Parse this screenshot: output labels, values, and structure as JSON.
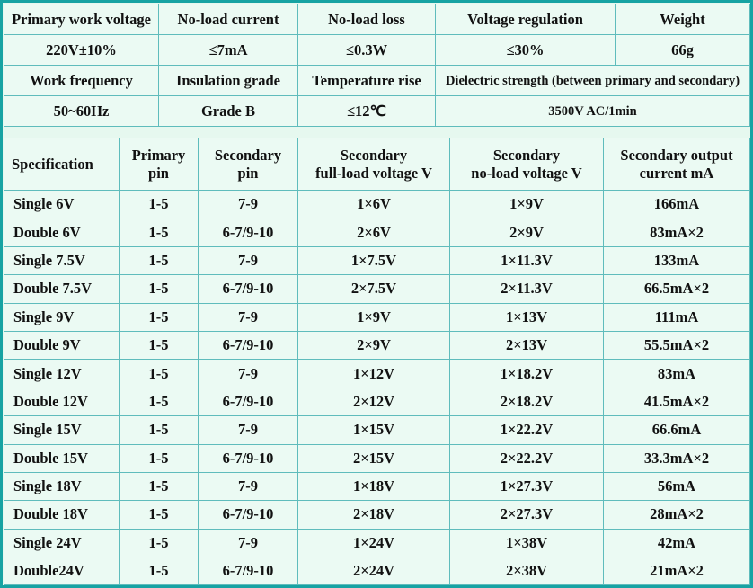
{
  "top": {
    "rows": [
      [
        "Primary work voltage",
        "No-load current",
        "No-load loss",
        "Voltage regulation",
        "Weight"
      ],
      [
        "220V±10%",
        "≤7mA",
        "≤0.3W",
        "≤30%",
        "66g"
      ],
      [
        "Work frequency",
        "Insulation grade",
        "Temperature rise",
        "Dielectric strength (between primary and secondary)"
      ],
      [
        "50~60Hz",
        "Grade B",
        "≤12℃",
        "3500V AC/1min"
      ]
    ]
  },
  "spec": {
    "header": [
      "Specification",
      "Primary\npin",
      "Secondary\npin",
      "Secondary\nfull-load voltage V",
      "Secondary\nno-load voltage V",
      "Secondary output\ncurrent mA"
    ],
    "rows": [
      [
        "Single 6V",
        "1-5",
        "7-9",
        "1×6V",
        "1×9V",
        "166mA"
      ],
      [
        "Double 6V",
        "1-5",
        "6-7/9-10",
        "2×6V",
        "2×9V",
        "83mA×2"
      ],
      [
        "Single 7.5V",
        "1-5",
        "7-9",
        "1×7.5V",
        "1×11.3V",
        "133mA"
      ],
      [
        "Double 7.5V",
        "1-5",
        "6-7/9-10",
        "2×7.5V",
        "2×11.3V",
        "66.5mA×2"
      ],
      [
        "Single 9V",
        "1-5",
        "7-9",
        "1×9V",
        "1×13V",
        "111mA"
      ],
      [
        "Double 9V",
        "1-5",
        "6-7/9-10",
        "2×9V",
        "2×13V",
        "55.5mA×2"
      ],
      [
        "Single 12V",
        "1-5",
        "7-9",
        "1×12V",
        "1×18.2V",
        "83mA"
      ],
      [
        "Double 12V",
        "1-5",
        "6-7/9-10",
        "2×12V",
        "2×18.2V",
        "41.5mA×2"
      ],
      [
        "Single 15V",
        "1-5",
        "7-9",
        "1×15V",
        "1×22.2V",
        "66.6mA"
      ],
      [
        "Double 15V",
        "1-5",
        "6-7/9-10",
        "2×15V",
        "2×22.2V",
        "33.3mA×2"
      ],
      [
        "Single 18V",
        "1-5",
        "7-9",
        "1×18V",
        "1×27.3V",
        "56mA"
      ],
      [
        "Double 18V",
        "1-5",
        "6-7/9-10",
        "2×18V",
        "2×27.3V",
        "28mA×2"
      ],
      [
        "Single 24V",
        "1-5",
        "7-9",
        "1×24V",
        "1×38V",
        "42mA"
      ],
      [
        "Double24V",
        "1-5",
        "6-7/9-10",
        "2×24V",
        "2×38V",
        "21mA×2"
      ]
    ]
  }
}
